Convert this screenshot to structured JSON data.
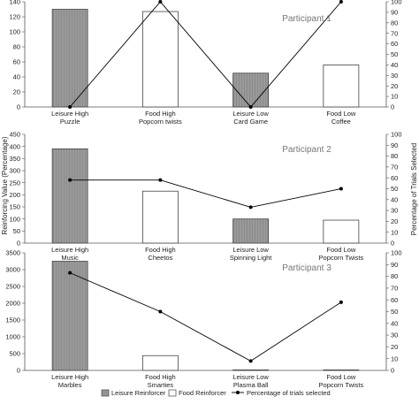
{
  "chart_data": {
    "type": "bar",
    "ylabel_left": "Reinforcing Value (Percentage)",
    "ylabel_right": "Percentage of Trials Selected",
    "legend": [
      "Leisure Reinforcer",
      "Food Reinforcer",
      "Percentage of trials selected"
    ],
    "colors": {
      "leisure": "#999999",
      "food": "#ffffff",
      "line": "#000000"
    },
    "panels": [
      {
        "title": "Participant 1",
        "categories": [
          [
            "Leisure High",
            "Puzzle"
          ],
          [
            "Food High",
            "Popcorn twists"
          ],
          [
            "Leisure Low",
            "Card Game"
          ],
          [
            "Food Low",
            "Coffee"
          ]
        ],
        "bar_types": [
          "leisure",
          "food",
          "leisure",
          "food"
        ],
        "bar_values": [
          130,
          127,
          45,
          56
        ],
        "line_values": [
          0,
          100,
          0,
          100
        ],
        "ylim_left": [
          0,
          140
        ],
        "yticks_left": [
          0,
          20,
          40,
          60,
          80,
          100,
          120,
          140
        ],
        "ylim_right": [
          0,
          100
        ],
        "yticks_right": [
          0,
          10,
          20,
          30,
          40,
          50,
          60,
          70,
          80,
          90,
          100
        ]
      },
      {
        "title": "Participant 2",
        "categories": [
          [
            "Leisure High",
            "Music"
          ],
          [
            "Food High",
            "Cheetos"
          ],
          [
            "Leisure Low",
            "Spinning Light"
          ],
          [
            "Food Low",
            "Popcorn Twists"
          ]
        ],
        "bar_types": [
          "leisure",
          "food",
          "leisure",
          "food"
        ],
        "bar_values": [
          390,
          215,
          100,
          95
        ],
        "line_values": [
          58,
          58,
          33,
          50
        ],
        "ylim_left": [
          0,
          450
        ],
        "yticks_left": [
          0,
          50,
          100,
          150,
          200,
          250,
          300,
          350,
          400,
          450
        ],
        "ylim_right": [
          0,
          100
        ],
        "yticks_right": [
          0,
          10,
          20,
          30,
          40,
          50,
          60,
          70,
          80,
          90,
          100
        ]
      },
      {
        "title": "Participant 3",
        "categories": [
          [
            "Leisure High",
            "Marbles"
          ],
          [
            "Food High",
            "Smarties"
          ],
          [
            "Leisure Low",
            "Plasma Ball"
          ],
          [
            "Food Low",
            "Popcorn Twists"
          ]
        ],
        "bar_types": [
          "leisure",
          "food",
          "leisure",
          "food"
        ],
        "bar_values": [
          3250,
          440,
          15,
          15
        ],
        "line_values": [
          83,
          50,
          8,
          58
        ],
        "ylim_left": [
          0,
          3500
        ],
        "yticks_left": [
          0,
          500,
          1000,
          1500,
          2000,
          2500,
          3000,
          3500
        ],
        "ylim_right": [
          0,
          100
        ],
        "yticks_right": [
          0,
          10,
          20,
          30,
          40,
          50,
          60,
          70,
          80,
          90,
          100
        ]
      }
    ]
  }
}
